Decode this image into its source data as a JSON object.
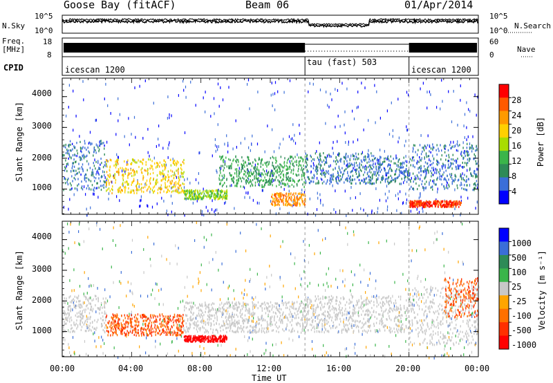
{
  "header": {
    "station": "Goose Bay (fitACF)",
    "beam": "Beam 06",
    "date": "01/Apr/2014"
  },
  "noise_panel": {
    "left_label": "N.Sky",
    "right_label": "N.Search",
    "left_ticks": [
      "10^5",
      "10^0"
    ],
    "right_ticks": [
      "10^5",
      "10^0"
    ]
  },
  "freq_panel": {
    "left_label_1": "Freq.",
    "left_label_2": "[MHz]",
    "right_label": "Nave",
    "left_ticks": [
      "18",
      "8"
    ],
    "right_ticks": [
      "60",
      "0"
    ]
  },
  "cpid_panel": {
    "label": "CPID",
    "segments": [
      {
        "name": "icescan 1200",
        "start_h": 0,
        "end_h": 14
      },
      {
        "name": "tau (fast) 503",
        "start_h": 14,
        "end_h": 20
      },
      {
        "name": "icescan 1200",
        "start_h": 20,
        "end_h": 24
      }
    ]
  },
  "range_panels": {
    "ylabel": "Slant Range [km]",
    "yticks": [
      "4000",
      "3000",
      "2000",
      "1000"
    ]
  },
  "x_axis": {
    "label": "Time UT",
    "ticks": [
      "00:00",
      "04:00",
      "08:00",
      "12:00",
      "16:00",
      "20:00",
      "00:00"
    ]
  },
  "power_colorbar": {
    "label": "Power [dB]",
    "ticks": [
      "28",
      "24",
      "20",
      "16",
      "12",
      "8",
      "4"
    ],
    "colors": [
      "#ff0000",
      "#ff5a00",
      "#ff9a00",
      "#ffd000",
      "#a8dc00",
      "#3ab54a",
      "#2e8b57",
      "#3a6ed8",
      "#0000ff"
    ]
  },
  "velocity_colorbar": {
    "label": "Velocity [m s⁻¹]",
    "ticks": [
      "1000",
      "500",
      "100",
      "25",
      "-25",
      "-100",
      "-500",
      "-1000"
    ],
    "colors": [
      "#0000ff",
      "#3a6ed8",
      "#2e8b57",
      "#3ab54a",
      "#c8c8c8",
      "#ffa500",
      "#ff7000",
      "#ff3000",
      "#ff0000"
    ]
  },
  "chart_data": [
    {
      "type": "heatmap",
      "title": "Goose Bay (fitACF)  Beam 06  01/Apr/2014",
      "xlabel": "Time UT",
      "ylabel": "Slant Range [km]",
      "xlim": [
        0,
        24
      ],
      "ylim": [
        180,
        4600
      ],
      "colorbar": "Power [dB]",
      "bands": [
        {
          "start_h": 0.0,
          "end_h": 2.5,
          "range_km": [
            1000,
            2600
          ],
          "value": 8
        },
        {
          "start_h": 2.5,
          "end_h": 7.0,
          "range_km": [
            900,
            2000
          ],
          "value": 20
        },
        {
          "start_h": 7.0,
          "end_h": 9.5,
          "range_km": [
            700,
            1000
          ],
          "value": 16
        },
        {
          "start_h": 9.0,
          "end_h": 14.0,
          "range_km": [
            1100,
            2100
          ],
          "value": 12
        },
        {
          "start_h": 12.0,
          "end_h": 14.0,
          "range_km": [
            500,
            900
          ],
          "value": 24
        },
        {
          "start_h": 14.0,
          "end_h": 18.0,
          "range_km": [
            1200,
            2200
          ],
          "value": 8
        },
        {
          "start_h": 18.0,
          "end_h": 20.0,
          "range_km": [
            1200,
            2100
          ],
          "value": 8
        },
        {
          "start_h": 20.0,
          "end_h": 24.0,
          "range_km": [
            1000,
            2500
          ],
          "value": 8
        },
        {
          "start_h": 20.0,
          "end_h": 23.0,
          "range_km": [
            450,
            650
          ],
          "value": 28
        }
      ]
    },
    {
      "type": "heatmap",
      "xlabel": "Time UT",
      "ylabel": "Slant Range [km]",
      "xlim": [
        0,
        24
      ],
      "ylim": [
        180,
        4600
      ],
      "colorbar": "Velocity [m s⁻¹]",
      "bands": [
        {
          "start_h": 0.0,
          "end_h": 2.5,
          "range_km": [
            1000,
            2200
          ],
          "value": 0
        },
        {
          "start_h": 2.5,
          "end_h": 7.0,
          "range_km": [
            900,
            1600
          ],
          "value": -100
        },
        {
          "start_h": 7.0,
          "end_h": 9.5,
          "range_km": [
            700,
            900
          ],
          "value": -500
        },
        {
          "start_h": 7.0,
          "end_h": 14.0,
          "range_km": [
            1000,
            2000
          ],
          "value": 0
        },
        {
          "start_h": 14.0,
          "end_h": 20.0,
          "range_km": [
            1000,
            2200
          ],
          "value": 0
        },
        {
          "start_h": 20.0,
          "end_h": 24.0,
          "range_km": [
            600,
            2500
          ],
          "value": 0
        },
        {
          "start_h": 22.0,
          "end_h": 24.0,
          "range_km": [
            1500,
            2800
          ],
          "value": -100
        }
      ]
    }
  ]
}
